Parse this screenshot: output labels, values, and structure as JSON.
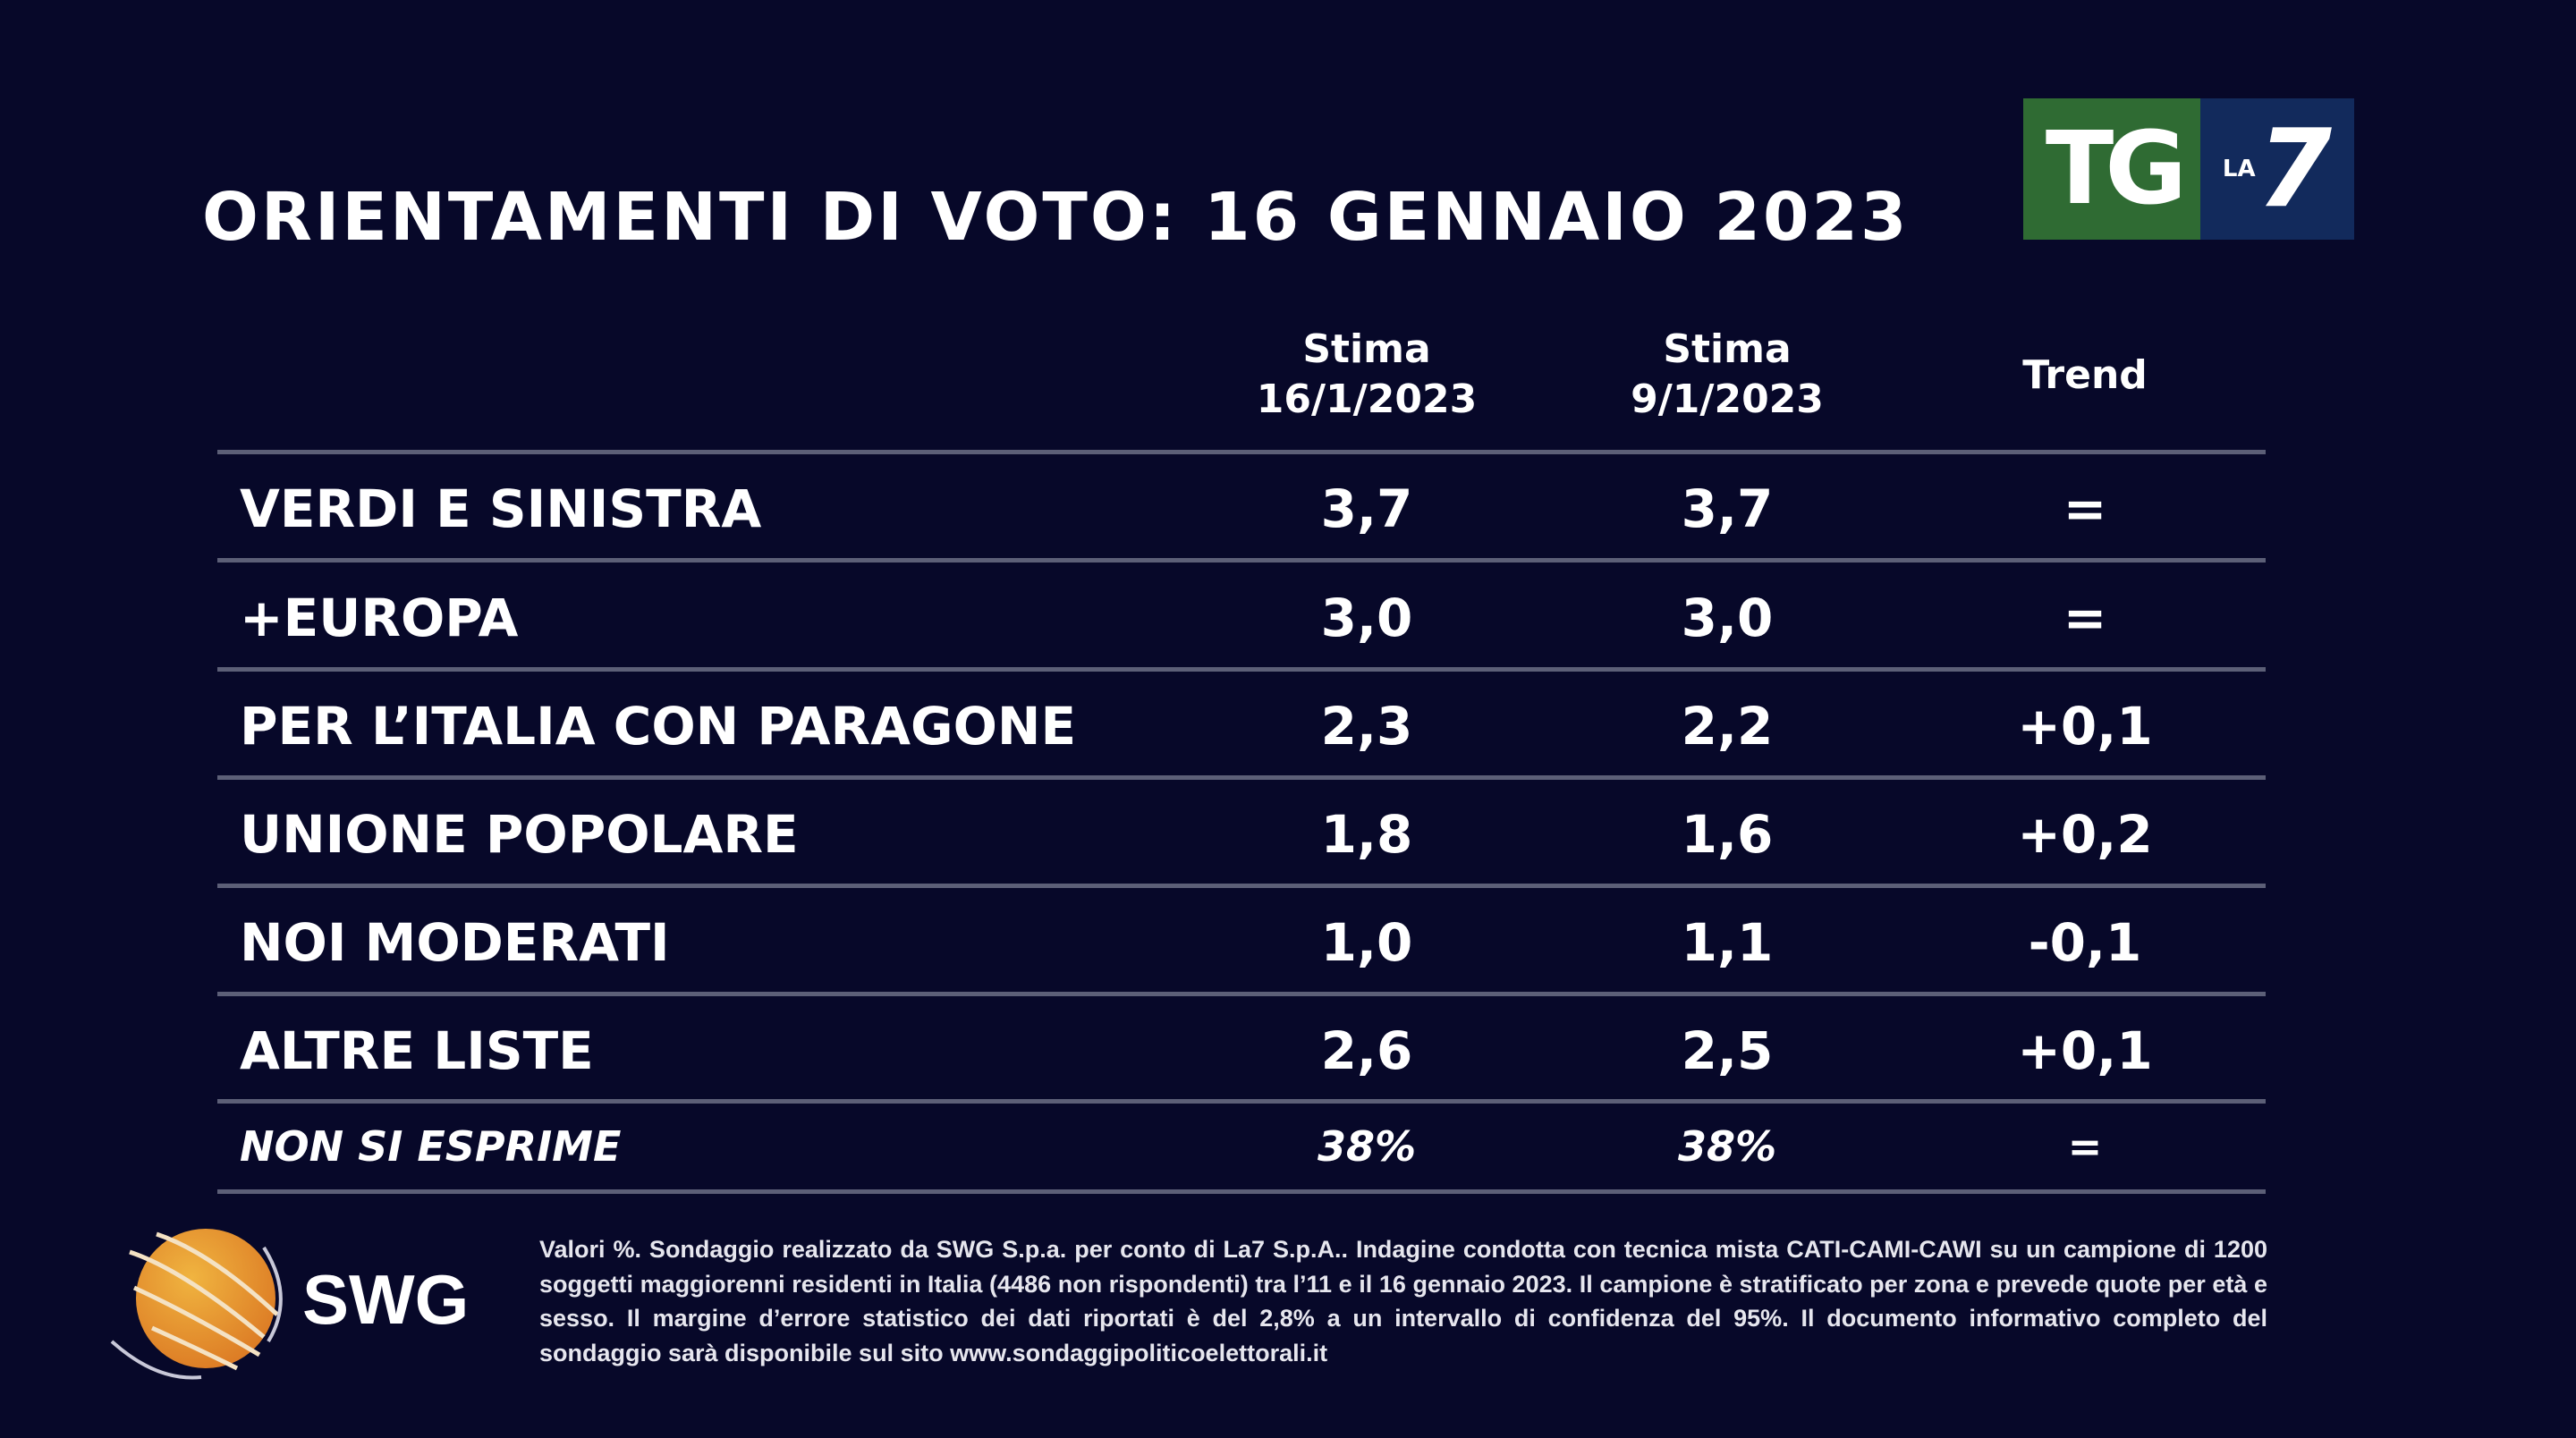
{
  "title": "ORIENTAMENTI DI VOTO: 16 GENNAIO 2023",
  "logo": {
    "main": "TG",
    "sub": "LA",
    "number": "7",
    "colors": {
      "green": "#2f6b33",
      "blue": "#122a5c"
    }
  },
  "table": {
    "headers": [
      {
        "line1": "Stima",
        "line2": "16/1/2023"
      },
      {
        "line1": "Stima",
        "line2": "9/1/2023"
      },
      {
        "line1": "Trend",
        "line2": ""
      }
    ],
    "rows": [
      {
        "party": "VERDI E SINISTRA",
        "current": "3,7",
        "previous": "3,7",
        "trend": "="
      },
      {
        "party": "+EUROPA",
        "current": "3,0",
        "previous": "3,0",
        "trend": "="
      },
      {
        "party": "PER L’ITALIA CON PARAGONE",
        "current": "2,3",
        "previous": "2,2",
        "trend": "+0,1"
      },
      {
        "party": "UNIONE POPOLARE",
        "current": "1,8",
        "previous": "1,6",
        "trend": "+0,2"
      },
      {
        "party": "NOI MODERATI",
        "current": "1,0",
        "previous": "1,1",
        "trend": "-0,1"
      },
      {
        "party": "ALTRE LISTE",
        "current": "2,6",
        "previous": "2,5",
        "trend": "+0,1"
      },
      {
        "party": "NON SI ESPRIME",
        "current": "38%",
        "previous": "38%",
        "trend": "="
      }
    ]
  },
  "swg": {
    "name": "SWG",
    "globe_color": "#e8a33a"
  },
  "footnote": "Valori %. Sondaggio realizzato da SWG S.p.a. per conto di La7 S.p.A.. Indagine condotta con tecnica mista CATI-CAMI-CAWI su un campione di 1200 soggetti maggiorenni residenti in Italia (4486 non rispondenti) tra l’11 e il 16 gennaio 2023. Il campione è stratificato per zona e prevede quote per età e sesso. Il margine d’errore statistico dei dati riportati è del 2,8% a un intervallo di confidenza del 95%. Il documento informativo completo del sondaggio sarà disponibile sul sito www.sondaggipoliticoelettorali.it"
}
